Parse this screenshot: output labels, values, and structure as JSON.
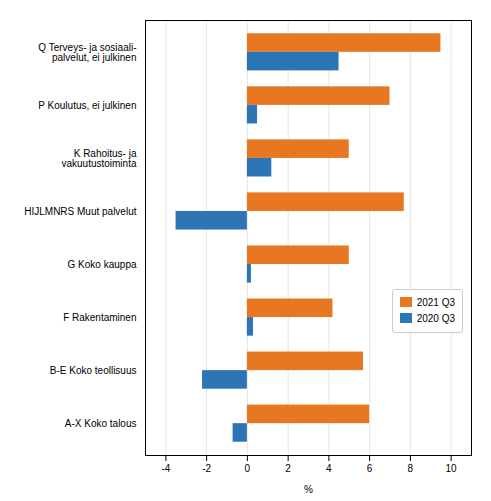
{
  "chart_data": {
    "type": "bar",
    "orientation": "horizontal",
    "categories": [
      "A-X Koko talous",
      "B-E Koko teollisuus",
      "F Rakentaminen",
      "G Koko kauppa",
      "HIJLMNRS Muut palvelut",
      "K Rahoitus- ja\nvakuutustoiminta",
      "P Koulutus, ei julkinen",
      "Q Terveys- ja sosiaali-\npalvelut, ei julkinen"
    ],
    "series": [
      {
        "name": "2021 Q3",
        "color": "#E87722",
        "values": [
          6.0,
          5.7,
          4.2,
          5.0,
          7.7,
          5.0,
          7.0,
          9.5
        ]
      },
      {
        "name": "2020 Q3",
        "color": "#2E75B6",
        "values": [
          -0.7,
          -2.2,
          0.3,
          0.2,
          -3.5,
          1.2,
          0.5,
          4.5
        ]
      }
    ],
    "xlabel": "%",
    "xlim": [
      -5,
      11
    ],
    "xticks": [
      -4,
      -2,
      0,
      2,
      4,
      6,
      8,
      10
    ],
    "grid": true,
    "legend": "right"
  }
}
